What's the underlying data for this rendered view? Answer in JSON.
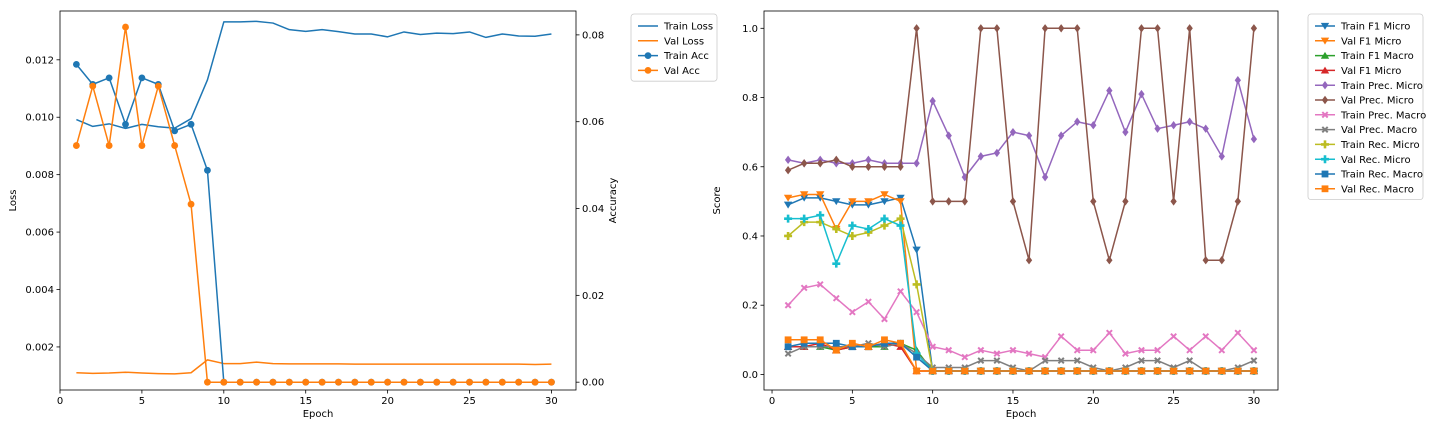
{
  "chart_data": [
    {
      "type": "line",
      "xlabel": "Epoch",
      "ylabel": "Loss",
      "y2label": "Accuracy",
      "x": [
        1,
        2,
        3,
        4,
        5,
        6,
        7,
        8,
        9,
        10,
        11,
        12,
        13,
        14,
        15,
        16,
        17,
        18,
        19,
        20,
        21,
        22,
        23,
        24,
        25,
        26,
        27,
        28,
        29,
        30
      ],
      "xlim": [
        0,
        31.5
      ],
      "xticks": [
        0,
        5,
        10,
        15,
        20,
        25,
        30
      ],
      "ylim": [
        0.0005,
        0.0137
      ],
      "yticks": [
        0.002,
        0.004,
        0.006,
        0.008,
        0.01,
        0.012
      ],
      "ytick_labels": [
        "0.002",
        "0.004",
        "0.006",
        "0.008",
        "0.010",
        "0.012"
      ],
      "y2lim": [
        -0.0018,
        0.0855
      ],
      "y2ticks": [
        0.0,
        0.02,
        0.04,
        0.06,
        0.08
      ],
      "y2tick_labels": [
        "0.00",
        "0.02",
        "0.04",
        "0.06",
        "0.08"
      ],
      "legend_position": "outside-top-right",
      "series": [
        {
          "name": "Train Loss",
          "axis": "left",
          "color": "#1f77b4",
          "marker": "none",
          "values": [
            0.00992,
            0.00968,
            0.00977,
            0.00961,
            0.00975,
            0.00967,
            0.00962,
            0.00995,
            0.0113,
            0.01332,
            0.01332,
            0.01334,
            0.01328,
            0.01305,
            0.01299,
            0.01305,
            0.01298,
            0.0129,
            0.0129,
            0.0128,
            0.01297,
            0.01288,
            0.01293,
            0.01291,
            0.01297,
            0.01278,
            0.0129,
            0.01283,
            0.01282,
            0.0129
          ]
        },
        {
          "name": "Val Loss",
          "axis": "left",
          "color": "#ff7f0e",
          "marker": "none",
          "values": [
            0.0011,
            0.00108,
            0.00109,
            0.00112,
            0.00109,
            0.00107,
            0.00106,
            0.0011,
            0.00155,
            0.00142,
            0.00142,
            0.00147,
            0.00142,
            0.00141,
            0.00141,
            0.00141,
            0.00141,
            0.0014,
            0.0014,
            0.0014,
            0.0014,
            0.0014,
            0.0014,
            0.0014,
            0.0014,
            0.0014,
            0.0014,
            0.0014,
            0.00139,
            0.0014
          ]
        },
        {
          "name": "Train Acc",
          "axis": "right",
          "color": "#1f77b4",
          "marker": "circle",
          "values": [
            0.0732,
            0.0686,
            0.0701,
            0.0594,
            0.0701,
            0.0686,
            0.0579,
            0.0594,
            0.0488,
            0,
            0,
            0,
            0,
            0,
            0,
            0,
            0,
            0,
            0,
            0,
            0,
            0,
            0,
            0,
            0,
            0,
            0,
            0,
            0,
            0
          ]
        },
        {
          "name": "Val Acc",
          "axis": "right",
          "color": "#ff7f0e",
          "marker": "circle",
          "values": [
            0.0545,
            0.0682,
            0.0545,
            0.0818,
            0.0545,
            0.0682,
            0.0545,
            0.041,
            0,
            0,
            0,
            0,
            0,
            0,
            0,
            0,
            0,
            0,
            0,
            0,
            0,
            0,
            0,
            0,
            0,
            0,
            0,
            0,
            0,
            0
          ]
        }
      ]
    },
    {
      "type": "line",
      "xlabel": "Epoch",
      "ylabel": "Score",
      "x": [
        1,
        2,
        3,
        4,
        5,
        6,
        7,
        8,
        9,
        10,
        11,
        12,
        13,
        14,
        15,
        16,
        17,
        18,
        19,
        20,
        21,
        22,
        23,
        24,
        25,
        26,
        27,
        28,
        29,
        30
      ],
      "xlim": [
        -0.5,
        31.5
      ],
      "xticks": [
        0,
        5,
        10,
        15,
        20,
        25,
        30
      ],
      "ylim": [
        -0.045,
        1.05
      ],
      "yticks": [
        0.0,
        0.2,
        0.4,
        0.6,
        0.8,
        1.0
      ],
      "ytick_labels": [
        "0.0",
        "0.2",
        "0.4",
        "0.6",
        "0.8",
        "1.0"
      ],
      "legend_position": "outside-top-right",
      "series": [
        {
          "name": "Train F1 Micro",
          "color": "#1f77b4",
          "marker": "triangle-down",
          "values": [
            0.49,
            0.51,
            0.51,
            0.5,
            0.49,
            0.49,
            0.5,
            0.51,
            0.36,
            0.01,
            0.01,
            0.01,
            0.01,
            0.01,
            0.01,
            0.01,
            0.01,
            0.01,
            0.01,
            0.01,
            0.01,
            0.01,
            0.01,
            0.01,
            0.01,
            0.01,
            0.01,
            0.01,
            0.01,
            0.01
          ]
        },
        {
          "name": "Val F1 Micro",
          "color": "#ff7f0e",
          "marker": "triangle-down",
          "values": [
            0.51,
            0.52,
            0.52,
            0.42,
            0.5,
            0.5,
            0.52,
            0.5,
            0.01,
            0.01,
            0.01,
            0.01,
            0.01,
            0.01,
            0.01,
            0.01,
            0.01,
            0.01,
            0.01,
            0.01,
            0.01,
            0.01,
            0.01,
            0.01,
            0.01,
            0.01,
            0.01,
            0.01,
            0.01,
            0.01
          ]
        },
        {
          "name": "Train F1 Macro",
          "color": "#2ca02c",
          "marker": "triangle-up",
          "values": [
            0.08,
            0.08,
            0.08,
            0.07,
            0.08,
            0.08,
            0.08,
            0.09,
            0.07,
            0.01,
            0.01,
            0.01,
            0.01,
            0.01,
            0.01,
            0.01,
            0.01,
            0.01,
            0.01,
            0.01,
            0.01,
            0.01,
            0.01,
            0.01,
            0.01,
            0.01,
            0.01,
            0.01,
            0.01,
            0.01
          ]
        },
        {
          "name": "Val F1 Micro",
          "color": "#d62728",
          "marker": "triangle-up",
          "values": [
            0.08,
            0.08,
            0.09,
            0.07,
            0.08,
            0.08,
            0.09,
            0.08,
            0.01,
            0.01,
            0.01,
            0.01,
            0.01,
            0.01,
            0.01,
            0.01,
            0.01,
            0.01,
            0.01,
            0.01,
            0.01,
            0.01,
            0.01,
            0.01,
            0.01,
            0.01,
            0.01,
            0.01,
            0.01,
            0.01
          ]
        },
        {
          "name": "Train Prec. Micro",
          "color": "#9467bd",
          "marker": "diamond",
          "values": [
            0.62,
            0.61,
            0.62,
            0.61,
            0.61,
            0.62,
            0.61,
            0.61,
            0.61,
            0.79,
            0.69,
            0.57,
            0.63,
            0.64,
            0.7,
            0.69,
            0.57,
            0.69,
            0.73,
            0.72,
            0.82,
            0.7,
            0.81,
            0.71,
            0.72,
            0.73,
            0.71,
            0.63,
            0.85,
            0.68
          ]
        },
        {
          "name": "Val Prec. Micro",
          "color": "#8c564b",
          "marker": "diamond",
          "values": [
            0.59,
            0.61,
            0.61,
            0.62,
            0.6,
            0.6,
            0.6,
            0.6,
            1.0,
            0.5,
            0.5,
            0.5,
            1.0,
            1.0,
            0.5,
            0.33,
            1.0,
            1.0,
            1.0,
            0.5,
            0.33,
            0.5,
            1.0,
            1.0,
            0.5,
            1.0,
            0.33,
            0.33,
            0.5,
            1.0
          ]
        },
        {
          "name": "Train Prec. Macro",
          "color": "#e377c2",
          "marker": "x",
          "values": [
            0.2,
            0.25,
            0.26,
            0.22,
            0.18,
            0.21,
            0.16,
            0.24,
            0.18,
            0.08,
            0.07,
            0.05,
            0.07,
            0.06,
            0.07,
            0.06,
            0.05,
            0.11,
            0.07,
            0.07,
            0.12,
            0.06,
            0.07,
            0.07,
            0.11,
            0.07,
            0.11,
            0.07,
            0.12,
            0.07
          ]
        },
        {
          "name": "Val Prec. Macro",
          "color": "#7f7f7f",
          "marker": "x",
          "values": [
            0.06,
            0.08,
            0.08,
            0.08,
            0.08,
            0.09,
            0.08,
            0.09,
            0.06,
            0.02,
            0.02,
            0.02,
            0.04,
            0.04,
            0.02,
            0.01,
            0.04,
            0.04,
            0.04,
            0.02,
            0.01,
            0.02,
            0.04,
            0.04,
            0.02,
            0.04,
            0.01,
            0.01,
            0.02,
            0.04
          ]
        },
        {
          "name": "Train Rec. Micro",
          "color": "#bcbd22",
          "marker": "plus",
          "values": [
            0.4,
            0.44,
            0.44,
            0.42,
            0.4,
            0.41,
            0.43,
            0.45,
            0.26,
            0.01,
            0.01,
            0.01,
            0.01,
            0.01,
            0.01,
            0.01,
            0.01,
            0.01,
            0.01,
            0.01,
            0.01,
            0.01,
            0.01,
            0.01,
            0.01,
            0.01,
            0.01,
            0.01,
            0.01,
            0.01
          ]
        },
        {
          "name": "Val Rec. Micro",
          "color": "#17becf",
          "marker": "plus",
          "values": [
            0.45,
            0.45,
            0.46,
            0.32,
            0.43,
            0.42,
            0.45,
            0.43,
            0.06,
            0.01,
            0.01,
            0.01,
            0.01,
            0.01,
            0.01,
            0.01,
            0.01,
            0.01,
            0.01,
            0.01,
            0.01,
            0.01,
            0.01,
            0.01,
            0.01,
            0.01,
            0.01,
            0.01,
            0.01,
            0.01
          ]
        },
        {
          "name": "Train Rec. Macro",
          "color": "#1f77b4",
          "marker": "square",
          "values": [
            0.08,
            0.09,
            0.09,
            0.09,
            0.08,
            0.08,
            0.09,
            0.09,
            0.05,
            0.01,
            0.01,
            0.01,
            0.01,
            0.01,
            0.01,
            0.01,
            0.01,
            0.01,
            0.01,
            0.01,
            0.01,
            0.01,
            0.01,
            0.01,
            0.01,
            0.01,
            0.01,
            0.01,
            0.01,
            0.01
          ]
        },
        {
          "name": "Val Rec. Macro",
          "color": "#ff7f0e",
          "marker": "square",
          "values": [
            0.1,
            0.1,
            0.1,
            0.07,
            0.09,
            0.08,
            0.1,
            0.09,
            0.01,
            0.01,
            0.01,
            0.01,
            0.01,
            0.01,
            0.01,
            0.01,
            0.01,
            0.01,
            0.01,
            0.01,
            0.01,
            0.01,
            0.01,
            0.01,
            0.01,
            0.01,
            0.01,
            0.01,
            0.01,
            0.01
          ]
        }
      ]
    }
  ]
}
